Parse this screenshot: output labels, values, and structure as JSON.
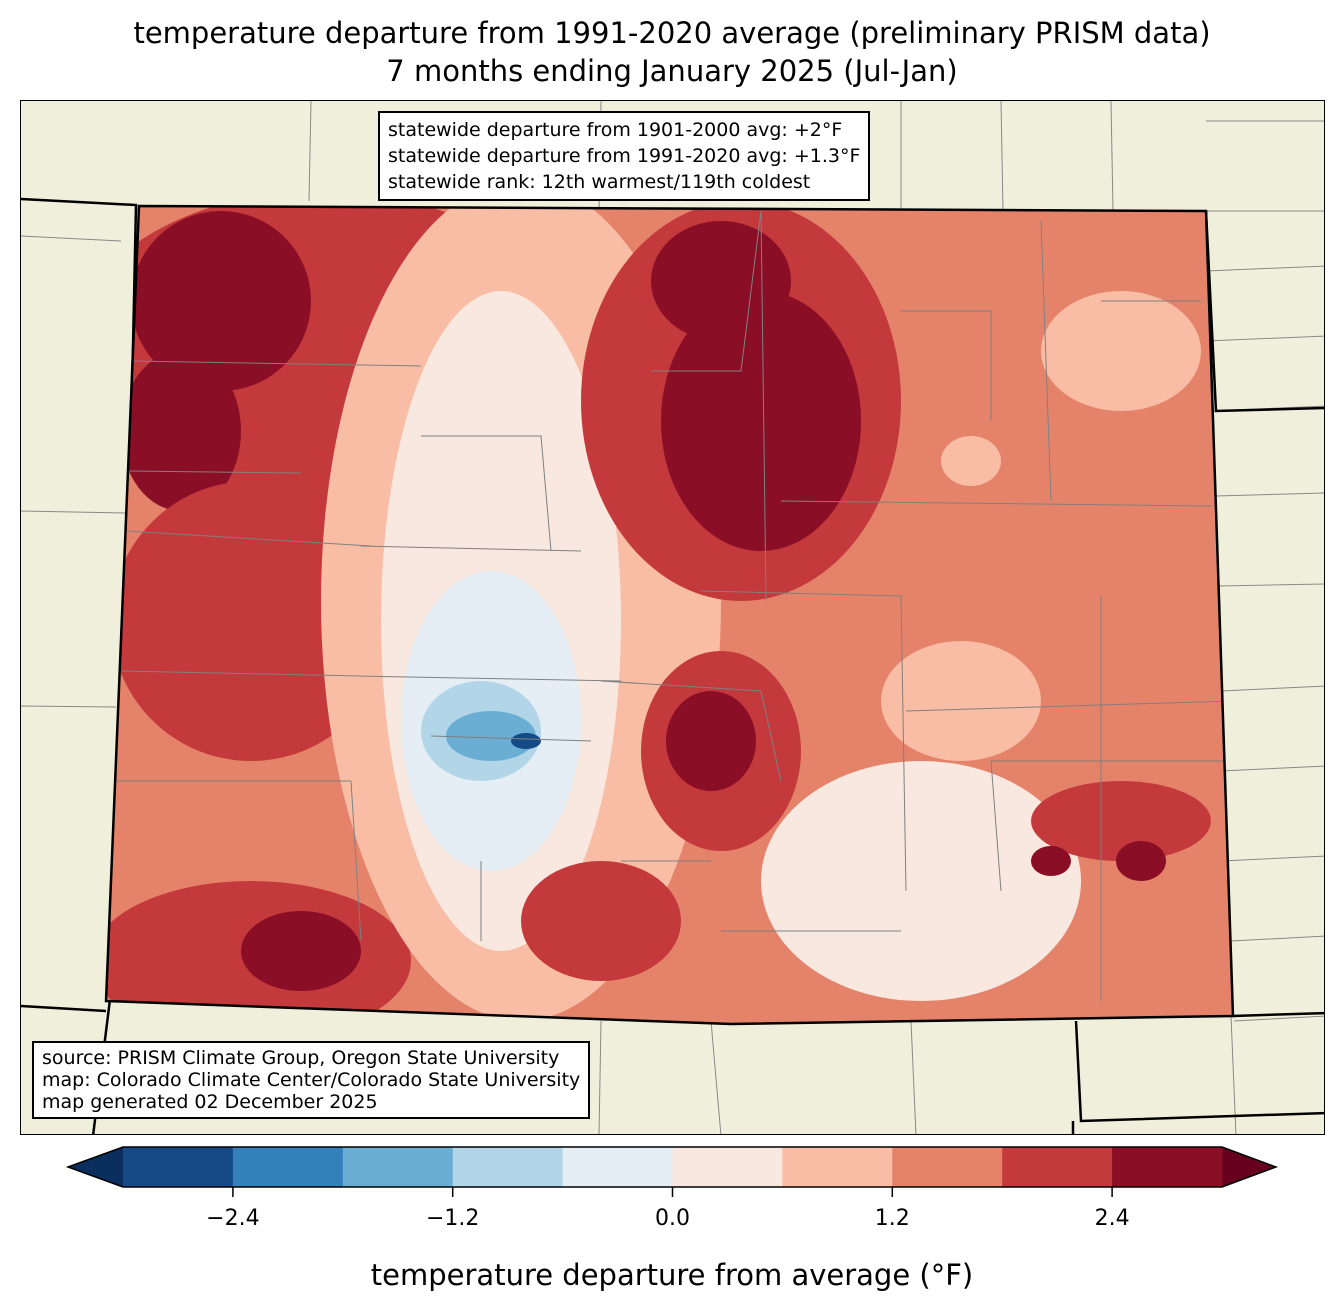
{
  "title": {
    "line1": "temperature departure from 1991-2020 average (preliminary PRISM data)",
    "line2": "7 months ending January 2025 (Jul-Jan)"
  },
  "stats_box": {
    "line1": "statewide departure from 1901-2000 avg: +2°F",
    "line2": "statewide departure from 1991-2020 avg: +1.3°F",
    "line3": "statewide rank: 12th warmest/119th coldest"
  },
  "source_box": {
    "line1": "source: PRISM Climate Group, Oregon State University",
    "line2": "map: Colorado Climate Center/Colorado State University",
    "line3": "map generated 02 December 2025"
  },
  "colorbar": {
    "label": "temperature departure from average (°F)",
    "range": [
      -3.0,
      3.0
    ],
    "bin_width": 0.6,
    "ticks": [
      -2.4,
      -1.2,
      0.0,
      1.2,
      2.4
    ],
    "tick_labels": [
      "−2.4",
      "−1.2",
      "0.0",
      "1.2",
      "2.4"
    ],
    "extend_low_color": "#0a2f5e",
    "extend_high_color": "#67001f",
    "colors": [
      "#154a87",
      "#3380bb",
      "#6aafd3",
      "#b2d5e8",
      "#e5eef4",
      "#f9e8df",
      "#f8bda4",
      "#e5826a",
      "#c4393b",
      "#8a0e25"
    ]
  },
  "map_colors": {
    "land": "#f0efdc",
    "border": "#808080"
  }
}
